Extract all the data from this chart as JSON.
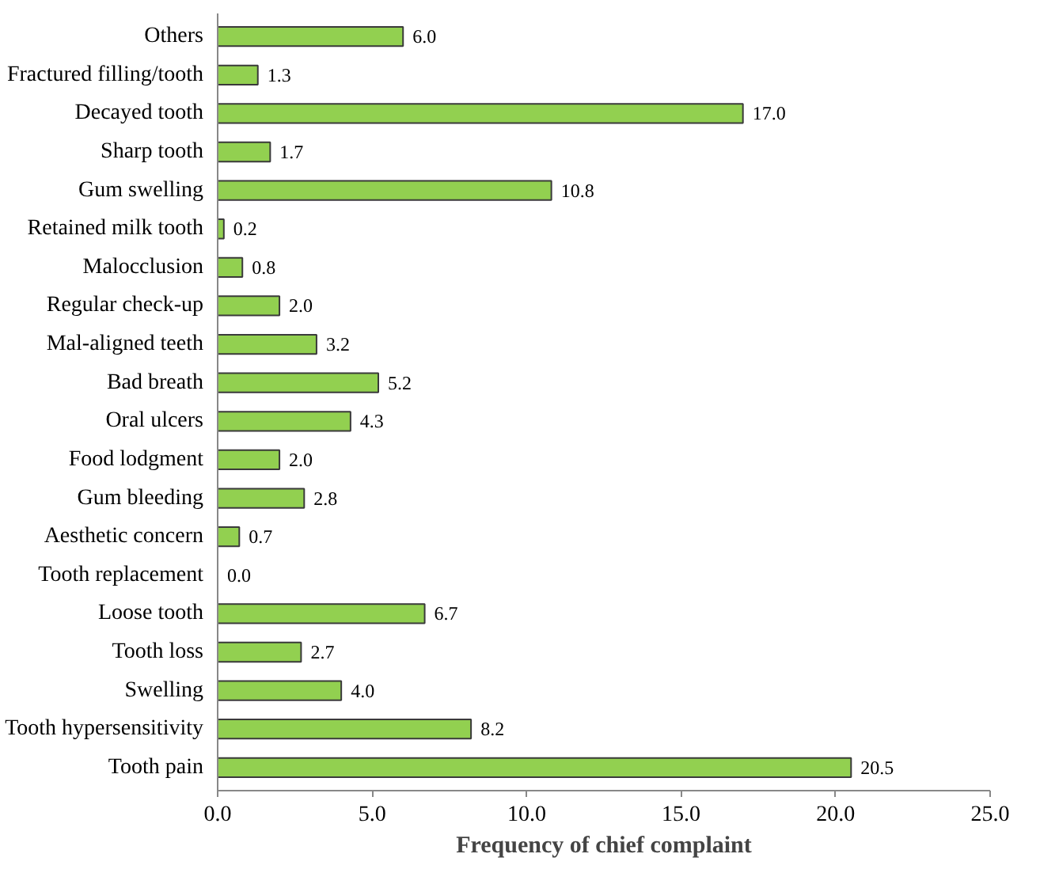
{
  "chart_data": {
    "type": "bar",
    "orientation": "horizontal",
    "xlabel": "Frequency of chief complaint",
    "categories": [
      "Others",
      "Fractured filling/tooth",
      "Decayed tooth",
      "Sharp tooth",
      "Gum swelling",
      "Retained milk tooth",
      "Malocclusion",
      "Regular check-up",
      "Mal-aligned teeth",
      "Bad breath",
      "Oral ulcers",
      "Food lodgment",
      "Gum bleeding",
      "Aesthetic concern",
      "Tooth replacement",
      "Loose tooth",
      "Tooth loss",
      "Swelling",
      "Tooth hypersensitivity",
      "Tooth pain"
    ],
    "values": [
      6.0,
      1.3,
      17.0,
      1.7,
      10.8,
      0.2,
      0.8,
      2.0,
      3.2,
      5.2,
      4.3,
      2.0,
      2.8,
      0.7,
      0.0,
      6.7,
      2.7,
      4.0,
      8.2,
      20.5
    ],
    "value_labels": [
      "6.0",
      "1.3",
      "17.0",
      "1.7",
      "10.8",
      "0.2",
      "0.8",
      "2.0",
      "3.2",
      "5.2",
      "4.3",
      "2.0",
      "2.8",
      "0.7",
      "0.0",
      "6.7",
      "2.7",
      "4.0",
      "8.2",
      "20.5"
    ],
    "color": "#92d050",
    "xlim": [
      0,
      25
    ],
    "xticks": [
      {
        "value": 0,
        "label": "0.0"
      },
      {
        "value": 5,
        "label": "5.0"
      },
      {
        "value": 10,
        "label": "10.0"
      },
      {
        "value": 15,
        "label": "15.0"
      },
      {
        "value": 20,
        "label": "20.0"
      },
      {
        "value": 25,
        "label": "25.0"
      }
    ],
    "grid": false
  }
}
